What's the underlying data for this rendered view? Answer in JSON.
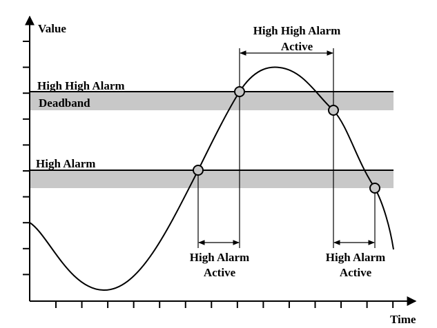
{
  "axes": {
    "y_label": "Value",
    "x_label": "Time"
  },
  "thresholds": [
    {
      "label": "High High Alarm",
      "deadband_label": "Deadband"
    },
    {
      "label": "High Alarm"
    }
  ],
  "annotations": [
    {
      "lines": [
        "High High Alarm",
        "Active"
      ]
    },
    {
      "lines": [
        "High Alarm",
        "Active"
      ]
    },
    {
      "lines": [
        "High Alarm",
        "Active"
      ]
    }
  ]
}
